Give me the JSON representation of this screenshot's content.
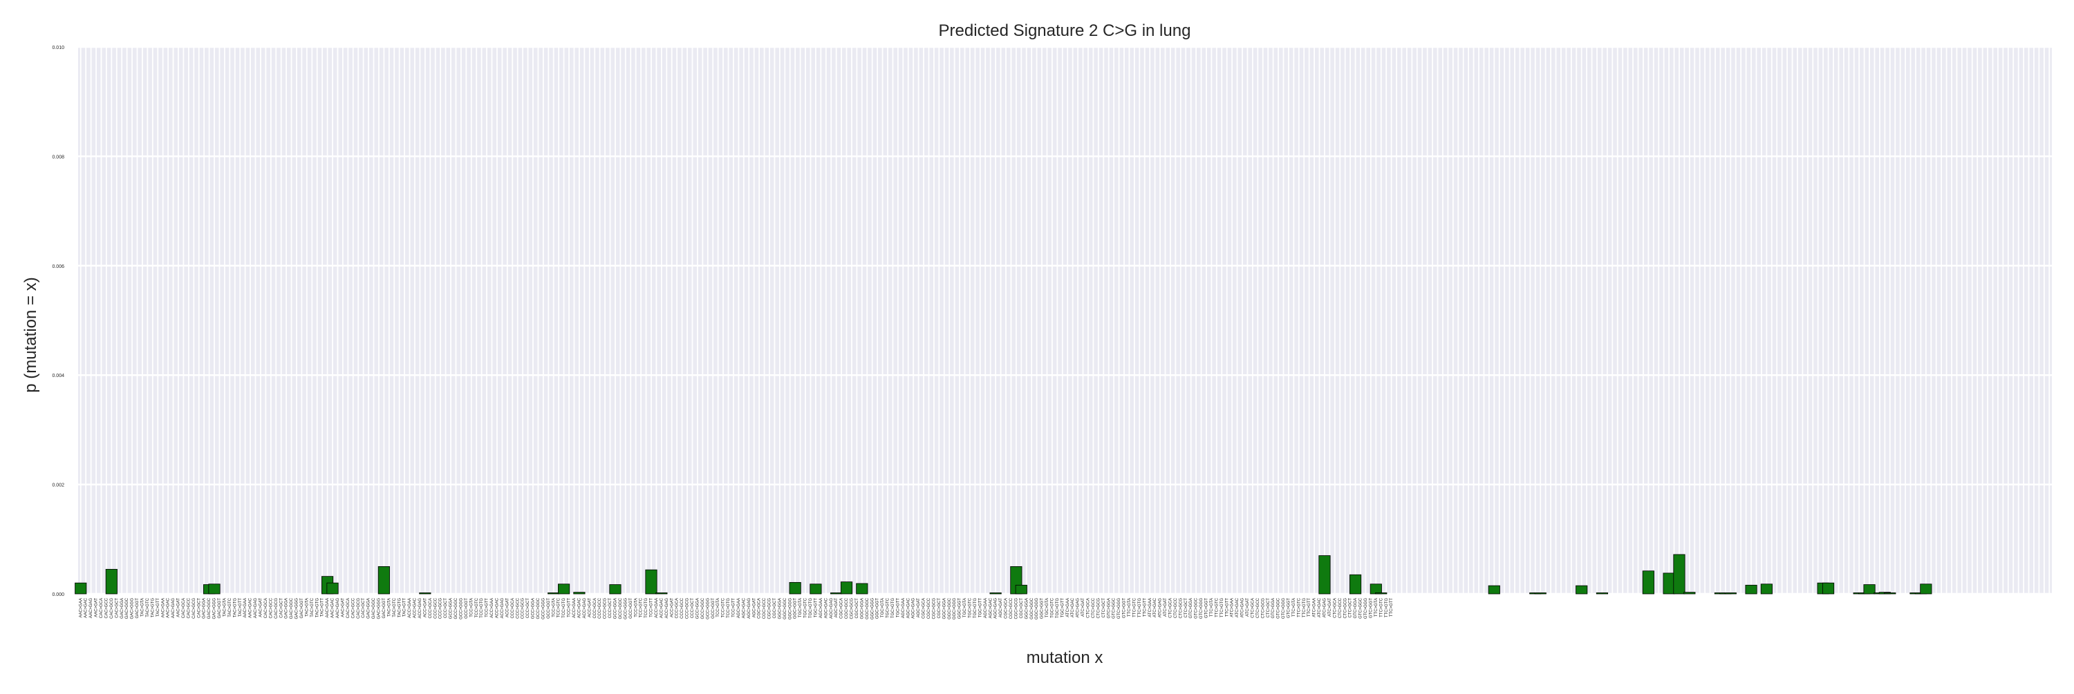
{
  "chart_data": {
    "type": "bar",
    "title": "Predicted Signature 2 C>G in lung",
    "xlabel": "mutation x",
    "ylabel": "p (mutation = x)",
    "ylim": [
      0,
      0.01
    ],
    "yticks": [
      "0.000",
      "0.002",
      "0.004",
      "0.006",
      "0.008",
      "0.010"
    ],
    "grid": true,
    "bar_color": "#0f7a0f",
    "background_color": "#eaeaf2",
    "categories": [
      "AAC>GAA",
      "AAC>GAC",
      "AAC>GAG",
      "AAC>GAT",
      "CAC>GCA",
      "CAC>GCC",
      "CAC>GCG",
      "CAC>GCT",
      "GAC>GGA",
      "GAC>GGC",
      "GAC>GGG",
      "GAC>GGT",
      "TAC>GTA",
      "TAC>GTC",
      "TAC>GTG",
      "TAC>GTT",
      "AAC>GAA",
      "AAC>GAC",
      "AAC>GAG",
      "AAC>GAT",
      "CAC>GCA",
      "CAC>GCC",
      "CAC>GCG",
      "CAC>GCT",
      "GAC>GGA",
      "GAC>GGC",
      "GAC>GGG",
      "GAC>GGT",
      "TAC>GTA",
      "TAC>GTC",
      "TAC>GTG",
      "TAC>GTT",
      "AAC>GAA",
      "AAC>GAC",
      "AAC>GAG",
      "AAC>GAT",
      "CAC>GCA",
      "CAC>GCC",
      "CAC>GCG",
      "CAC>GCT",
      "GAC>GGA",
      "GAC>GGC",
      "GAC>GGG",
      "GAC>GGT",
      "TAC>GTA",
      "TAC>GTC",
      "TAC>GTG",
      "TAC>GTT",
      "AAC>GAA",
      "AAC>GAC",
      "AAC>GAG",
      "AAC>GAT",
      "CAC>GCA",
      "CAC>GCC",
      "CAC>GCG",
      "CAC>GCT",
      "GAC>GGA",
      "GAC>GGC",
      "GAC>GGG",
      "GAC>GGT",
      "TAC>GTA",
      "TAC>GTC",
      "TAC>GTG",
      "TAC>GTT",
      "ACC>GAA",
      "ACC>GAC",
      "ACC>GAG",
      "ACC>GAT",
      "CCC>GCA",
      "CCC>GCC",
      "CCC>GCG",
      "CCC>GCT",
      "GCC>GGA",
      "GCC>GGC",
      "GCC>GGG",
      "GCC>GGT",
      "TCC>GTA",
      "TCC>GTC",
      "TCC>GTG",
      "TCC>GTT",
      "ACC>GAA",
      "ACC>GAC",
      "ACC>GAG",
      "ACC>GAT",
      "CCC>GCA",
      "CCC>GCC",
      "CCC>GCG",
      "CCC>GCT",
      "GCC>GGA",
      "GCC>GGC",
      "GCC>GGG",
      "GCC>GGT",
      "TCC>GTA",
      "TCC>GTC",
      "TCC>GTG",
      "TCC>GTT",
      "ACC>GAA",
      "ACC>GAC",
      "ACC>GAG",
      "ACC>GAT",
      "CCC>GCA",
      "CCC>GCC",
      "CCC>GCG",
      "CCC>GCT",
      "GCC>GGA",
      "GCC>GGC",
      "GCC>GGG",
      "GCC>GGT",
      "TCC>GTA",
      "TCC>GTC",
      "TCC>GTG",
      "TCC>GTT",
      "ACC>GAA",
      "ACC>GAC",
      "ACC>GAG",
      "ACC>GAT",
      "CCC>GCA",
      "CCC>GCC",
      "CCC>GCG",
      "CCC>GCT",
      "GCC>GGA",
      "GCC>GGC",
      "GCC>GGG",
      "GCC>GGT",
      "TCC>GTA",
      "TCC>GTC",
      "TCC>GTG",
      "TCC>GTT",
      "AGC>GAA",
      "AGC>GAC",
      "AGC>GAG",
      "AGC>GAT",
      "CGC>GCA",
      "CGC>GCC",
      "CGC>GCG",
      "CGC>GCT",
      "GGC>GGA",
      "GGC>GGC",
      "GGC>GGG",
      "GGC>GGT",
      "TGC>GTA",
      "TGC>GTC",
      "TGC>GTG",
      "TGC>GTT",
      "AGC>GAA",
      "AGC>GAC",
      "AGC>GAG",
      "AGC>GAT",
      "CGC>GCA",
      "CGC>GCC",
      "CGC>GCG",
      "CGC>GCT",
      "GGC>GGA",
      "GGC>GGC",
      "GGC>GGG",
      "GGC>GGT",
      "TGC>GTA",
      "TGC>GTC",
      "TGC>GTG",
      "TGC>GTT",
      "AGC>GAA",
      "AGC>GAC",
      "AGC>GAG",
      "AGC>GAT",
      "CGC>GCA",
      "CGC>GCC",
      "CGC>GCG",
      "CGC>GCT",
      "GGC>GGA",
      "GGC>GGC",
      "GGC>GGG",
      "GGC>GGT",
      "TGC>GTA",
      "TGC>GTC",
      "TGC>GTG",
      "TGC>GTT",
      "AGC>GAA",
      "AGC>GAC",
      "AGC>GAG",
      "AGC>GAT",
      "CGC>GCA",
      "CGC>GCC",
      "CGC>GCG",
      "CGC>GCT",
      "GGC>GGA",
      "GGC>GGC",
      "GGC>GGG",
      "GGC>GGT",
      "TGC>GTA",
      "TGC>GTC",
      "TGC>GTG",
      "TGC>GTT",
      "ATC>GAA",
      "ATC>GAC",
      "ATC>GAG",
      "ATC>GAT",
      "CTC>GCA",
      "CTC>GCC",
      "CTC>GCG",
      "CTC>GCT",
      "GTC>GGA",
      "GTC>GGC",
      "GTC>GGG",
      "GTC>GGT",
      "TTC>GTA",
      "TTC>GTC",
      "TTC>GTG",
      "TTC>GTT",
      "ATC>GAA",
      "ATC>GAC",
      "ATC>GAG",
      "ATC>GAT",
      "CTC>GCA",
      "CTC>GCC",
      "CTC>GCG",
      "CTC>GCT",
      "GTC>GGA",
      "GTC>GGC",
      "GTC>GGG",
      "GTC>GGT",
      "TTC>GTA",
      "TTC>GTC",
      "TTC>GTG",
      "TTC>GTT",
      "ATC>GAA",
      "ATC>GAC",
      "ATC>GAG",
      "ATC>GAT",
      "CTC>GCA",
      "CTC>GCC",
      "CTC>GCG",
      "CTC>GCT",
      "GTC>GGA",
      "GTC>GGC",
      "GTC>GGG",
      "GTC>GGT",
      "TTC>GTA",
      "TTC>GTC",
      "TTC>GTG",
      "TTC>GTT",
      "ATC>GAA",
      "ATC>GAC",
      "ATC>GAG",
      "ATC>GAT",
      "CTC>GCA",
      "CTC>GCC",
      "CTC>GCG",
      "CTC>GCT",
      "GTC>GGA",
      "GTC>GGC",
      "GTC>GGG",
      "GTC>GGT",
      "TTC>GTA",
      "TTC>GTC",
      "TTC>GTG",
      "TTC>GTT"
    ],
    "values": [
      0.0002,
      0,
      0,
      0,
      0,
      0,
      0.00045,
      0,
      0,
      0,
      0,
      0,
      0,
      0,
      0,
      0,
      0,
      0,
      0,
      0,
      0,
      0,
      0,
      0,
      0,
      0.00017,
      0.00018,
      0,
      0,
      0,
      0,
      0,
      0,
      0,
      0,
      0,
      0,
      0,
      0,
      0,
      0,
      0,
      0,
      0,
      0,
      0,
      0,
      0,
      0.00032,
      0.0002,
      0,
      0,
      0,
      0,
      0,
      0,
      0,
      0,
      0,
      0.0005,
      0,
      0,
      0,
      0,
      0,
      0,
      0,
      2e-05,
      0,
      0,
      0,
      0,
      0,
      0,
      0,
      0,
      0,
      0,
      0,
      0,
      0,
      0,
      0,
      0,
      0,
      0,
      0,
      0,
      0,
      0,
      0,
      0,
      2e-05,
      0,
      0.00018,
      0,
      0,
      3e-05,
      0,
      0,
      0,
      0,
      0,
      0,
      0.00017,
      0,
      0,
      0,
      0,
      0,
      0,
      0.00044,
      0,
      2e-05,
      0,
      0,
      0,
      0,
      0,
      0,
      0,
      0,
      0,
      0,
      0,
      0,
      0,
      0,
      0,
      0,
      0,
      0,
      0,
      0,
      0,
      0,
      0,
      0,
      0,
      0.00021,
      0,
      0,
      0,
      0.00018,
      0,
      0,
      0,
      2e-05,
      0,
      0.00022,
      0,
      0,
      0.00019,
      0,
      0,
      0,
      0,
      0,
      0,
      0,
      0,
      0,
      0,
      0,
      0,
      0,
      0,
      0,
      0,
      0,
      0,
      0,
      0,
      0,
      0,
      0,
      0,
      0,
      2e-05,
      0,
      0,
      0,
      0.0005,
      0.00016,
      0,
      0,
      0,
      0,
      0,
      0,
      0,
      0,
      0,
      0,
      0,
      0,
      0,
      0,
      0,
      0,
      0,
      0,
      0,
      0,
      0,
      0,
      0,
      0,
      0,
      0,
      0,
      0,
      0,
      0,
      0,
      0,
      0,
      0,
      0,
      0,
      0,
      0,
      0,
      0,
      0,
      0,
      0,
      0,
      0,
      0,
      0,
      0,
      0,
      0,
      0,
      0,
      0,
      0,
      0,
      0,
      0,
      0,
      0,
      0,
      0,
      0,
      0,
      0,
      0,
      0,
      0,
      0,
      0,
      0,
      0,
      0
    ],
    "overlay_bars": [
      {
        "slot": 242,
        "value": 0.0007
      },
      {
        "slot": 248,
        "value": 0.00035
      },
      {
        "slot": 252,
        "value": 0.00018
      },
      {
        "slot": 253,
        "value": 2e-05
      },
      {
        "slot": 275,
        "value": 0.00015
      },
      {
        "slot": 283,
        "value": 2e-05
      },
      {
        "slot": 284,
        "value": 2e-05
      },
      {
        "slot": 292,
        "value": 0.00015
      },
      {
        "slot": 296,
        "value": 2e-05
      },
      {
        "slot": 305,
        "value": 0.00042
      },
      {
        "slot": 309,
        "value": 0.00038
      },
      {
        "slot": 311,
        "value": 0.00072
      },
      {
        "slot": 313,
        "value": 3e-05
      },
      {
        "slot": 319,
        "value": 2e-05
      },
      {
        "slot": 320,
        "value": 2e-05
      },
      {
        "slot": 321,
        "value": 2e-05
      },
      {
        "slot": 325,
        "value": 0.00016
      },
      {
        "slot": 328,
        "value": 0.00018
      },
      {
        "slot": 339,
        "value": 0.0002
      },
      {
        "slot": 340,
        "value": 0.0002
      },
      {
        "slot": 346,
        "value": 2e-05
      },
      {
        "slot": 347,
        "value": 2e-05
      },
      {
        "slot": 348,
        "value": 0.00017
      },
      {
        "slot": 350,
        "value": 2e-05
      },
      {
        "slot": 351,
        "value": 3e-05
      },
      {
        "slot": 352,
        "value": 2e-05
      },
      {
        "slot": 357,
        "value": 2e-05
      },
      {
        "slot": 358,
        "value": 2e-05
      },
      {
        "slot": 359,
        "value": 0.00018
      }
    ]
  }
}
